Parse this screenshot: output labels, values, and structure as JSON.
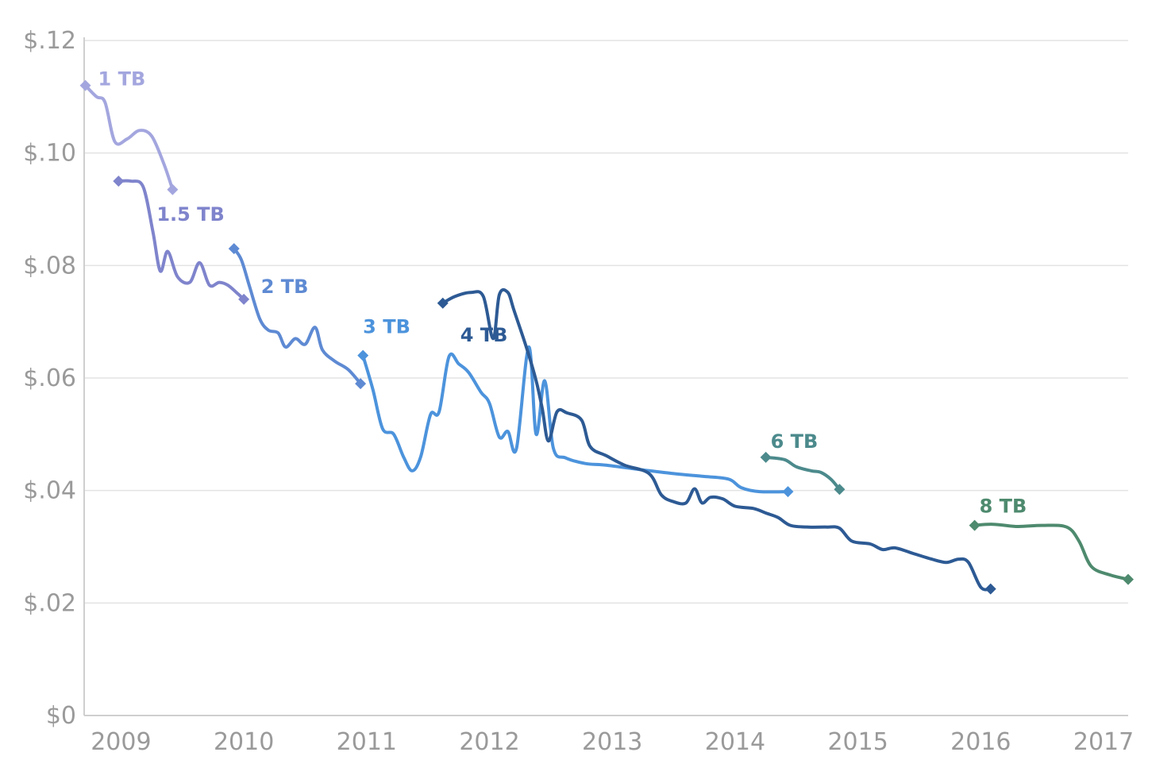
{
  "chart_data": {
    "type": "line",
    "title": "",
    "xlabel": "",
    "ylabel": "",
    "xlim": [
      2008.7,
      2017.2
    ],
    "ylim": [
      0,
      0.12
    ],
    "grid": true,
    "legend": "inline labels at series starts",
    "x_ticks": [
      2009,
      2010,
      2011,
      2012,
      2013,
      2014,
      2015,
      2016,
      2017
    ],
    "x_tick_labels": [
      "2009",
      "2010",
      "2011",
      "2012",
      "2013",
      "2014",
      "2015",
      "2016",
      "2017"
    ],
    "y_ticks": [
      0,
      0.02,
      0.04,
      0.06,
      0.08,
      0.1,
      0.12
    ],
    "y_tick_labels": [
      "$0",
      "$.02",
      "$.04",
      "$.06",
      "$.08",
      "$.10",
      "$.12"
    ],
    "series": [
      {
        "name": "1 TB",
        "color": "#a3a6de",
        "points": [
          [
            2008.71,
            0.112
          ],
          [
            2008.8,
            0.11
          ],
          [
            2008.87,
            0.109
          ],
          [
            2008.95,
            0.102
          ],
          [
            2009.05,
            0.1025
          ],
          [
            2009.15,
            0.104
          ],
          [
            2009.25,
            0.103
          ],
          [
            2009.35,
            0.098
          ],
          [
            2009.42,
            0.0935
          ]
        ]
      },
      {
        "name": "1.5 TB",
        "color": "#7f84cc",
        "points": [
          [
            2008.98,
            0.095
          ],
          [
            2009.08,
            0.095
          ],
          [
            2009.18,
            0.094
          ],
          [
            2009.26,
            0.086
          ],
          [
            2009.32,
            0.079
          ],
          [
            2009.38,
            0.0825
          ],
          [
            2009.46,
            0.078
          ],
          [
            2009.56,
            0.077
          ],
          [
            2009.64,
            0.0805
          ],
          [
            2009.72,
            0.0765
          ],
          [
            2009.8,
            0.077
          ],
          [
            2009.87,
            0.0765
          ],
          [
            2009.95,
            0.075
          ],
          [
            2010.0,
            0.074
          ]
        ]
      },
      {
        "name": "2 TB",
        "color": "#5e8ad3",
        "points": [
          [
            2009.92,
            0.083
          ],
          [
            2009.98,
            0.081
          ],
          [
            2010.05,
            0.076
          ],
          [
            2010.13,
            0.0705
          ],
          [
            2010.2,
            0.0685
          ],
          [
            2010.28,
            0.068
          ],
          [
            2010.34,
            0.0655
          ],
          [
            2010.42,
            0.067
          ],
          [
            2010.5,
            0.066
          ],
          [
            2010.58,
            0.069
          ],
          [
            2010.64,
            0.065
          ],
          [
            2010.74,
            0.063
          ],
          [
            2010.85,
            0.0615
          ],
          [
            2010.95,
            0.059
          ]
        ]
      },
      {
        "name": "3 TB",
        "color": "#4c93dc",
        "points": [
          [
            2010.97,
            0.064
          ],
          [
            2011.05,
            0.058
          ],
          [
            2011.13,
            0.051
          ],
          [
            2011.22,
            0.05
          ],
          [
            2011.3,
            0.046
          ],
          [
            2011.37,
            0.0435
          ],
          [
            2011.44,
            0.046
          ],
          [
            2011.52,
            0.0535
          ],
          [
            2011.59,
            0.054
          ],
          [
            2011.67,
            0.0638
          ],
          [
            2011.75,
            0.0625
          ],
          [
            2011.83,
            0.061
          ],
          [
            2011.93,
            0.0575
          ],
          [
            2012.0,
            0.0555
          ],
          [
            2012.08,
            0.0495
          ],
          [
            2012.15,
            0.0505
          ],
          [
            2012.22,
            0.0475
          ],
          [
            2012.32,
            0.0655
          ],
          [
            2012.38,
            0.05
          ],
          [
            2012.45,
            0.0595
          ],
          [
            2012.52,
            0.0475
          ],
          [
            2012.62,
            0.0458
          ],
          [
            2012.78,
            0.0448
          ],
          [
            2012.95,
            0.0445
          ],
          [
            2013.2,
            0.0438
          ],
          [
            2013.5,
            0.043
          ],
          [
            2013.75,
            0.0425
          ],
          [
            2013.95,
            0.042
          ],
          [
            2014.05,
            0.0405
          ],
          [
            2014.2,
            0.0398
          ],
          [
            2014.43,
            0.0398
          ]
        ]
      },
      {
        "name": "4 TB",
        "color": "#2d5a94",
        "points": [
          [
            2011.62,
            0.0733
          ],
          [
            2011.72,
            0.0745
          ],
          [
            2011.85,
            0.0752
          ],
          [
            2011.95,
            0.0745
          ],
          [
            2012.03,
            0.067
          ],
          [
            2012.08,
            0.0748
          ],
          [
            2012.15,
            0.0752
          ],
          [
            2012.2,
            0.072
          ],
          [
            2012.3,
            0.0655
          ],
          [
            2012.38,
            0.0595
          ],
          [
            2012.43,
            0.0545
          ],
          [
            2012.48,
            0.0488
          ],
          [
            2012.55,
            0.054
          ],
          [
            2012.63,
            0.0538
          ],
          [
            2012.75,
            0.0525
          ],
          [
            2012.82,
            0.0478
          ],
          [
            2012.95,
            0.0462
          ],
          [
            2013.1,
            0.0445
          ],
          [
            2013.3,
            0.043
          ],
          [
            2013.4,
            0.0392
          ],
          [
            2013.5,
            0.038
          ],
          [
            2013.6,
            0.0378
          ],
          [
            2013.67,
            0.0403
          ],
          [
            2013.73,
            0.0378
          ],
          [
            2013.8,
            0.0388
          ],
          [
            2013.9,
            0.0385
          ],
          [
            2014.0,
            0.0372
          ],
          [
            2014.15,
            0.0368
          ],
          [
            2014.25,
            0.036
          ],
          [
            2014.35,
            0.0352
          ],
          [
            2014.45,
            0.0338
          ],
          [
            2014.6,
            0.0335
          ],
          [
            2014.75,
            0.0335
          ],
          [
            2014.85,
            0.0333
          ],
          [
            2014.95,
            0.031
          ],
          [
            2015.1,
            0.0305
          ],
          [
            2015.2,
            0.0295
          ],
          [
            2015.3,
            0.0298
          ],
          [
            2015.45,
            0.0288
          ],
          [
            2015.6,
            0.0278
          ],
          [
            2015.72,
            0.0272
          ],
          [
            2015.82,
            0.0278
          ],
          [
            2015.9,
            0.0272
          ],
          [
            2016.0,
            0.0228
          ],
          [
            2016.08,
            0.0225
          ]
        ]
      },
      {
        "name": "6 TB",
        "color": "#4c8a8c",
        "points": [
          [
            2014.25,
            0.0459
          ],
          [
            2014.4,
            0.0455
          ],
          [
            2014.5,
            0.0442
          ],
          [
            2014.62,
            0.0435
          ],
          [
            2014.7,
            0.0432
          ],
          [
            2014.78,
            0.042
          ],
          [
            2014.85,
            0.0402
          ]
        ]
      },
      {
        "name": "8 TB",
        "color": "#4e8a6e",
        "points": [
          [
            2015.95,
            0.0338
          ],
          [
            2016.1,
            0.034
          ],
          [
            2016.3,
            0.0336
          ],
          [
            2016.5,
            0.0338
          ],
          [
            2016.7,
            0.0335
          ],
          [
            2016.8,
            0.031
          ],
          [
            2016.9,
            0.0265
          ],
          [
            2017.05,
            0.025
          ],
          [
            2017.2,
            0.0242
          ]
        ]
      }
    ]
  }
}
